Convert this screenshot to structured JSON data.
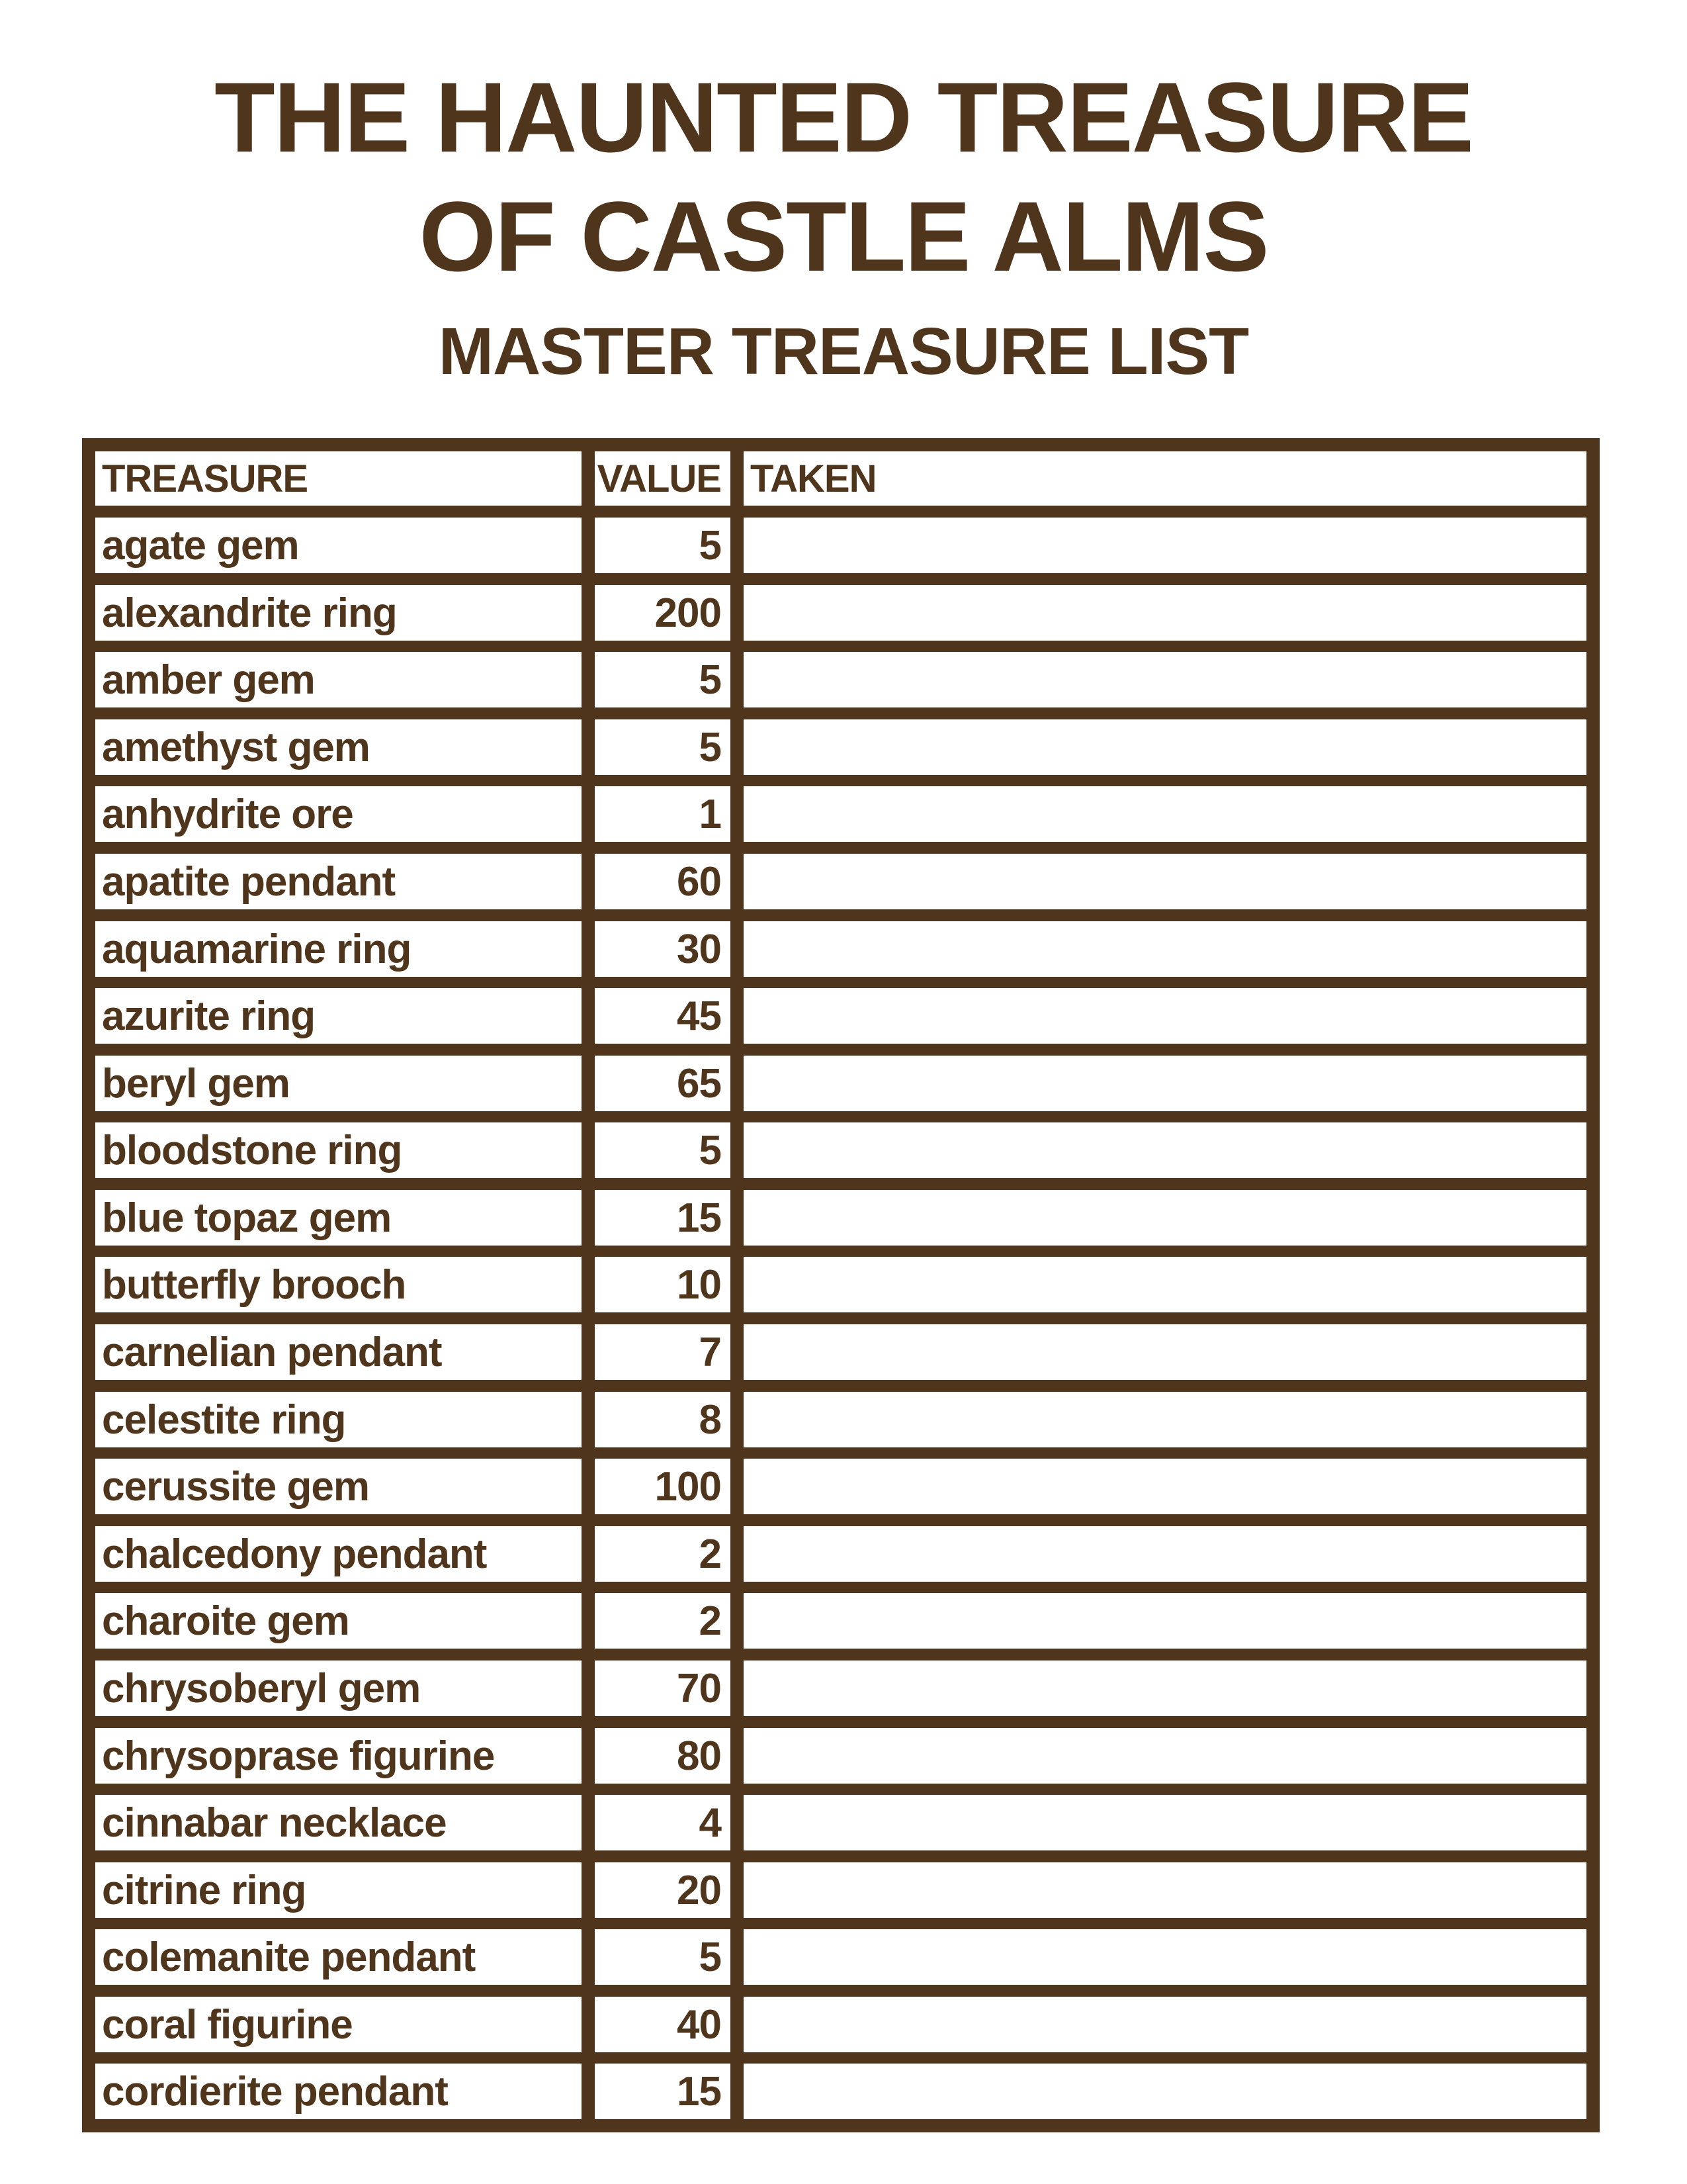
{
  "title_line1": "THE HAUNTED TREASURE",
  "title_line2": "OF CASTLE ALMS",
  "subtitle": "MASTER TREASURE LIST",
  "columns": {
    "treasure": "TREASURE",
    "value": "VALUE",
    "taken": "TAKEN"
  },
  "colors": {
    "ink": "#4f351c",
    "paper": "#ffffff"
  },
  "rows": [
    {
      "name": "agate gem",
      "value": "5",
      "taken": ""
    },
    {
      "name": "alexandrite ring",
      "value": "200",
      "taken": ""
    },
    {
      "name": "amber gem",
      "value": "5",
      "taken": ""
    },
    {
      "name": "amethyst gem",
      "value": "5",
      "taken": ""
    },
    {
      "name": "anhydrite ore",
      "value": "1",
      "taken": ""
    },
    {
      "name": "apatite pendant",
      "value": "60",
      "taken": ""
    },
    {
      "name": "aquamarine ring",
      "value": "30",
      "taken": ""
    },
    {
      "name": "azurite ring",
      "value": "45",
      "taken": ""
    },
    {
      "name": "beryl gem",
      "value": "65",
      "taken": ""
    },
    {
      "name": "bloodstone ring",
      "value": "5",
      "taken": ""
    },
    {
      "name": "blue topaz gem",
      "value": "15",
      "taken": ""
    },
    {
      "name": "butterfly brooch",
      "value": "10",
      "taken": ""
    },
    {
      "name": "carnelian pendant",
      "value": "7",
      "taken": ""
    },
    {
      "name": "celestite ring",
      "value": "8",
      "taken": ""
    },
    {
      "name": "cerussite gem",
      "value": "100",
      "taken": ""
    },
    {
      "name": "chalcedony pendant",
      "value": "2",
      "taken": ""
    },
    {
      "name": "charoite gem",
      "value": "2",
      "taken": ""
    },
    {
      "name": "chrysoberyl gem",
      "value": "70",
      "taken": ""
    },
    {
      "name": "chrysoprase figurine",
      "value": "80",
      "taken": ""
    },
    {
      "name": "cinnabar necklace",
      "value": "4",
      "taken": ""
    },
    {
      "name": "citrine ring",
      "value": "20",
      "taken": ""
    },
    {
      "name": "colemanite pendant",
      "value": "5",
      "taken": ""
    },
    {
      "name": "coral figurine",
      "value": "40",
      "taken": ""
    },
    {
      "name": "cordierite pendant",
      "value": "15",
      "taken": ""
    }
  ]
}
